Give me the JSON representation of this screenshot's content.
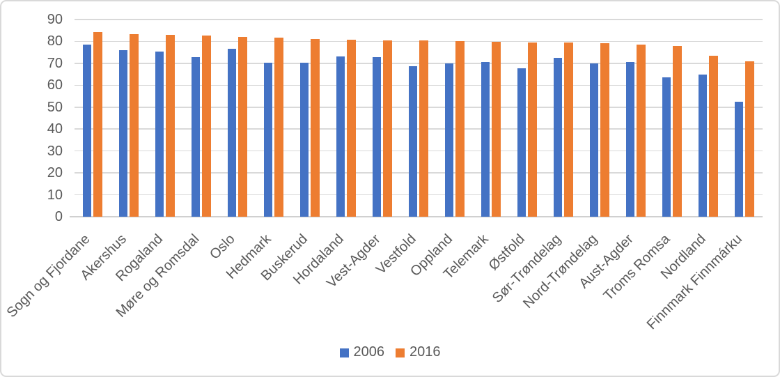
{
  "chart_data": {
    "type": "bar",
    "title": "",
    "xlabel": "",
    "ylabel": "",
    "categories": [
      "Sogn og Fjordane",
      "Akershus",
      "Rogaland",
      "Møre og Romsdal",
      "Oslo",
      "Hedmark",
      "Buskerud",
      "Hordaland",
      "Vest-Agder",
      "Vestfold",
      "Oppland",
      "Telemark",
      "Østfold",
      "Sør-Trøndelag",
      "Nord-Trøndelag",
      "Aust-Agder",
      "Troms Romsa",
      "Nordland",
      "Finnmark Finnmárku"
    ],
    "series": [
      {
        "name": "2006",
        "color": "#4472C4",
        "values": [
          78.5,
          76.0,
          75.3,
          72.8,
          76.6,
          70.4,
          70.2,
          73.1,
          72.8,
          68.8,
          70.1,
          70.5,
          67.7,
          72.5,
          69.9,
          70.7,
          63.5,
          64.9,
          52.4
        ]
      },
      {
        "name": "2016",
        "color": "#ED7D31",
        "values": [
          84.3,
          83.4,
          83.1,
          82.6,
          82.1,
          81.6,
          81.1,
          80.7,
          80.6,
          80.5,
          80.2,
          79.9,
          79.6,
          79.4,
          79.1,
          78.7,
          78.0,
          73.4,
          70.9
        ]
      }
    ],
    "ylim": [
      0,
      90
    ],
    "yticks": [
      0,
      10,
      20,
      30,
      40,
      50,
      60,
      70,
      80,
      90
    ],
    "grid": true,
    "legend_position": "bottom",
    "colors": {
      "axis_text": "#595959",
      "gridline": "#D9D9D9",
      "axis_line": "#D0D0D0"
    }
  }
}
